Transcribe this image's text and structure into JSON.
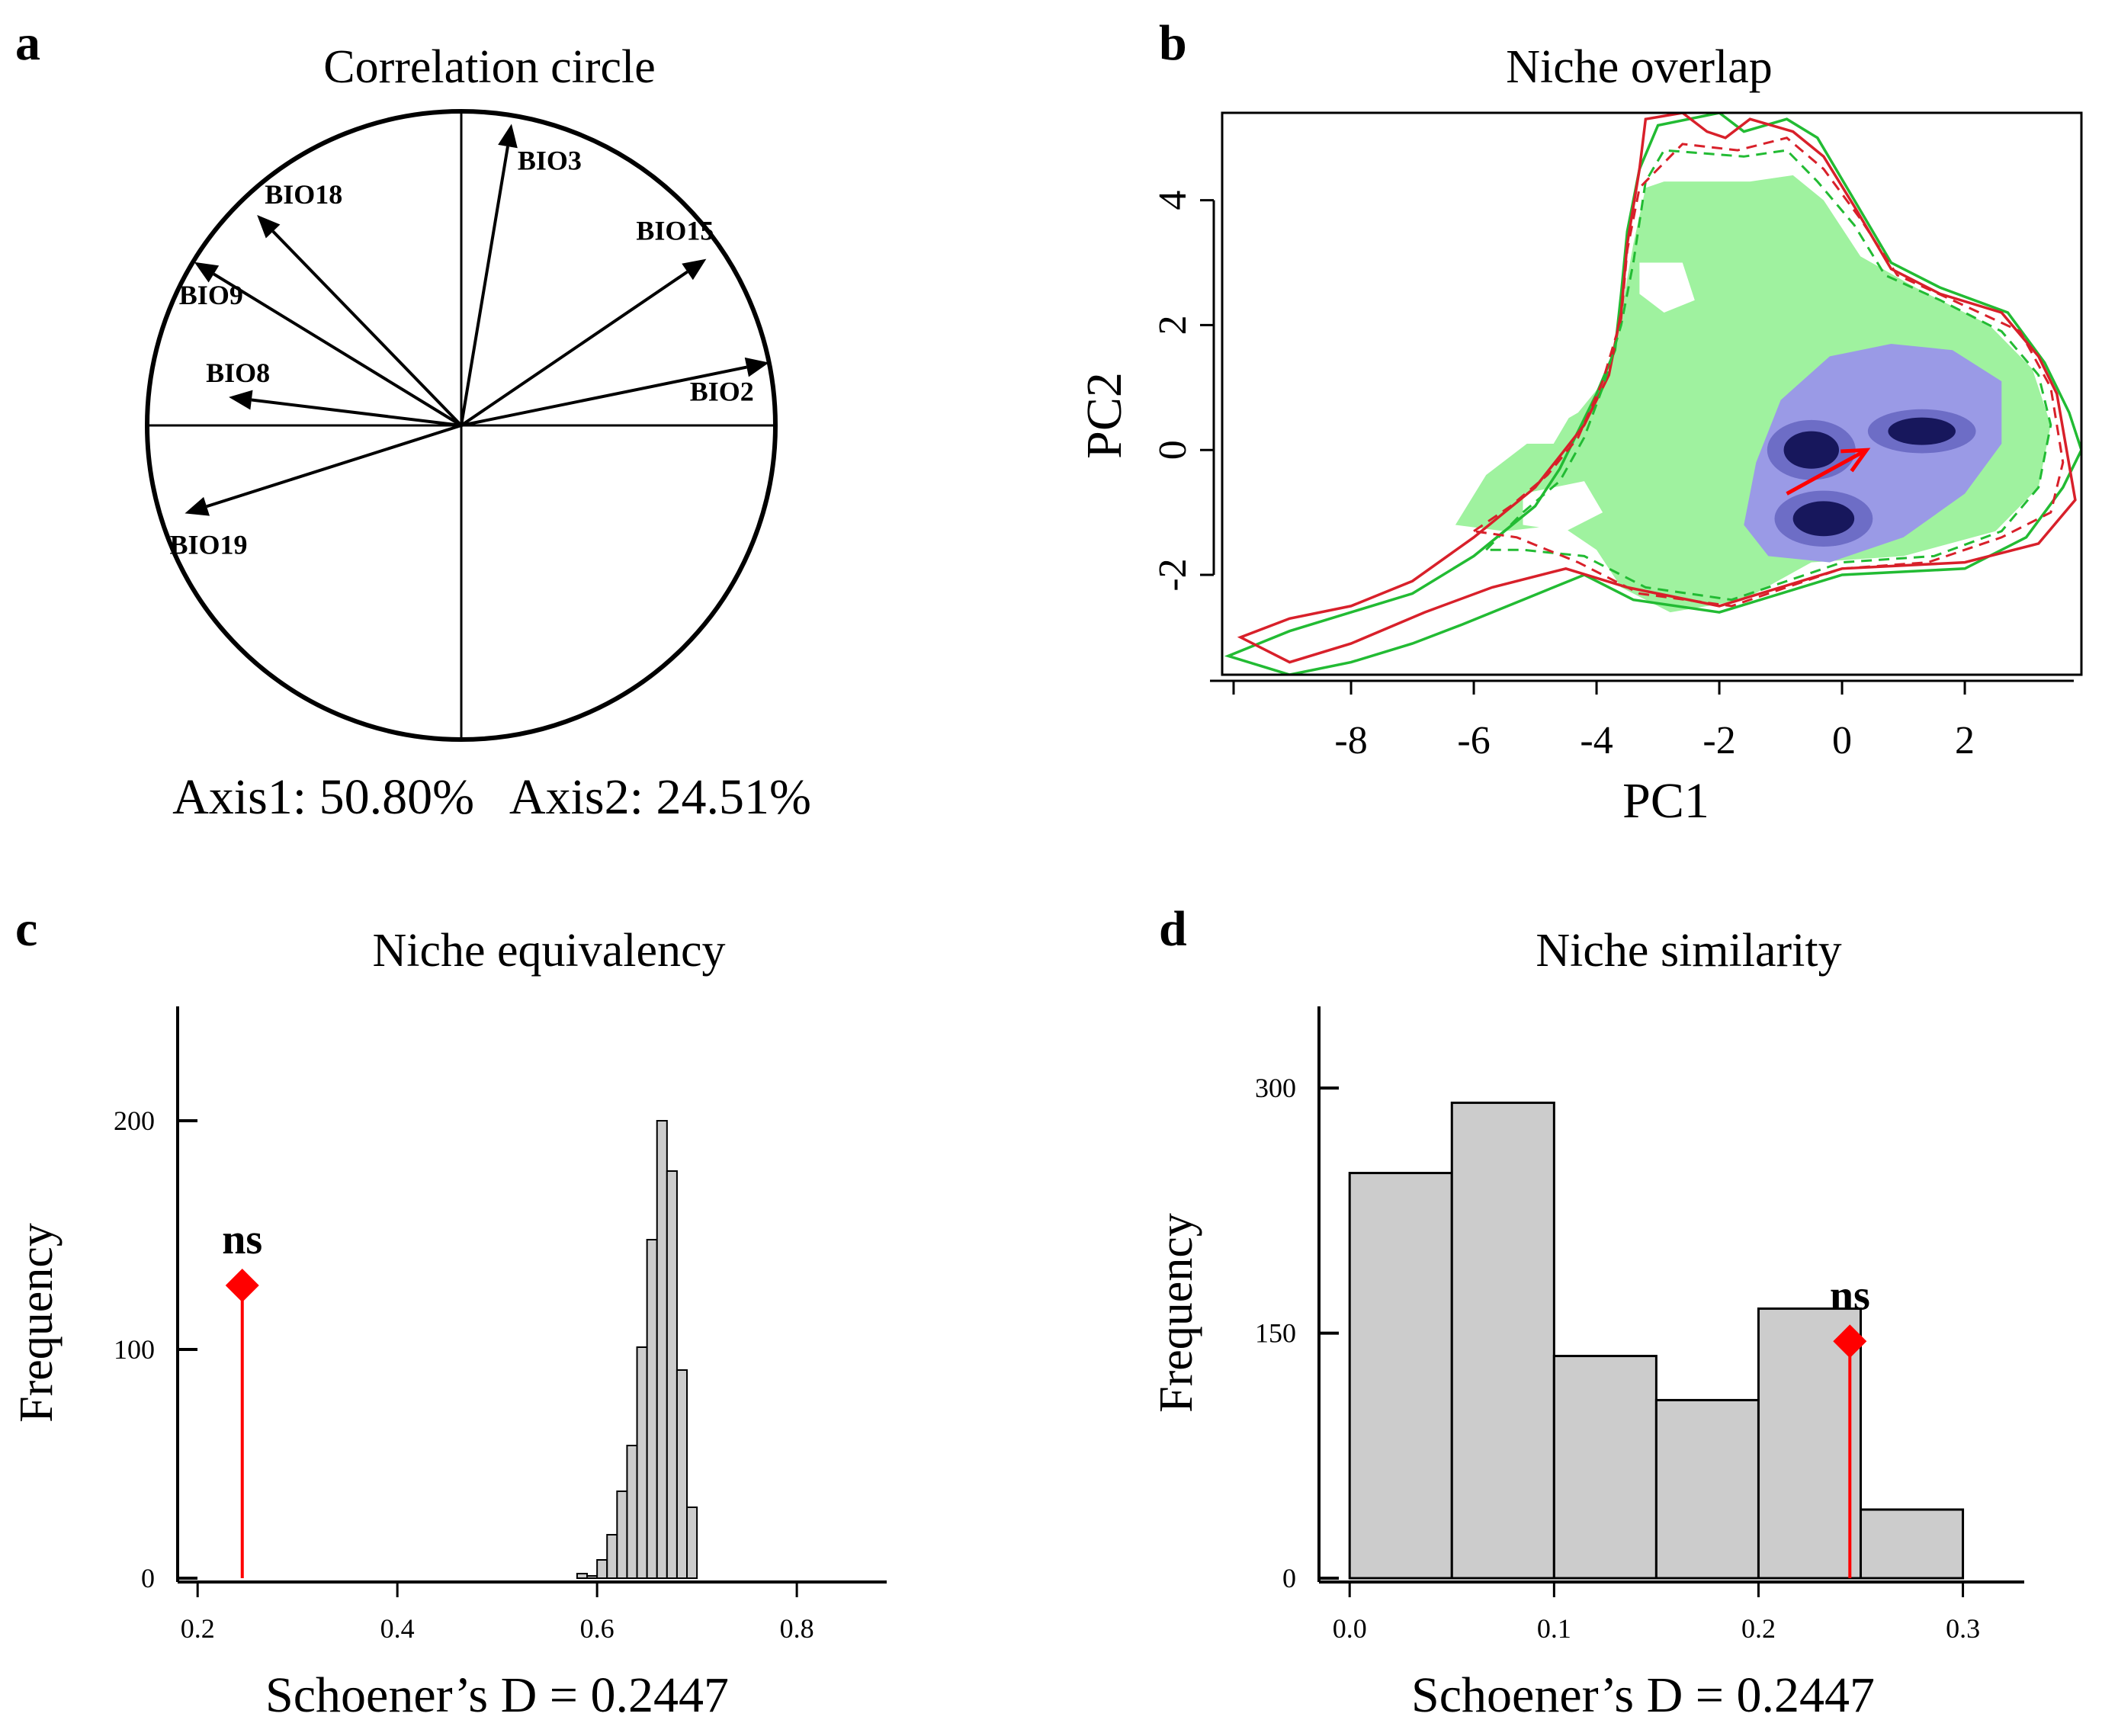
{
  "colors": {
    "text": "#000000",
    "green_line": "#22bb33",
    "green_fill": "#9ff29f",
    "red_line": "#d8202a",
    "blue_dark": "#0d0d50",
    "blue_light": "#9a9ae6",
    "bar_fill": "#cccccc",
    "marker_red": "#ff0000"
  },
  "chart_data": [
    {
      "panel": "a",
      "type": "correlation-circle",
      "title": "Correlation circle",
      "axis_label": "Axis1: 50.80%   Axis2: 24.51%",
      "xlim": [
        -1,
        1
      ],
      "ylim": [
        -1,
        1
      ],
      "vectors": [
        {
          "label": "BIO3",
          "x": 0.16,
          "y": 0.96
        },
        {
          "label": "BIO15",
          "x": 0.78,
          "y": 0.53
        },
        {
          "label": "BIO2",
          "x": 0.98,
          "y": 0.2
        },
        {
          "label": "BIO18",
          "x": -0.65,
          "y": 0.67
        },
        {
          "label": "BIO9",
          "x": -0.85,
          "y": 0.52
        },
        {
          "label": "BIO8",
          "x": -0.74,
          "y": 0.09
        },
        {
          "label": "BIO19",
          "x": -0.88,
          "y": -0.28
        }
      ]
    },
    {
      "panel": "b",
      "type": "niche-overlap",
      "title": "Niche overlap",
      "xlabel": "PC1",
      "ylabel": "PC2",
      "xlim": [
        -10.1,
        3.9
      ],
      "ylim": [
        -3.6,
        5.4
      ],
      "xticks": [
        -8,
        -6,
        -4,
        -2,
        0,
        2
      ],
      "xtick_labels": [
        "-8",
        "-6",
        "-4",
        "-2",
        "0",
        "2"
      ],
      "yticks": [
        -2,
        0,
        2,
        4
      ],
      "ytick_labels": [
        "-2",
        "0",
        "2",
        "4"
      ],
      "green_envelope": [
        [
          -10,
          -3.3
        ],
        [
          -9,
          -2.9
        ],
        [
          -8,
          -2.6
        ],
        [
          -7,
          -2.3
        ],
        [
          -6,
          -1.7
        ],
        [
          -5,
          -0.9
        ],
        [
          -4.6,
          -0.3
        ],
        [
          -4.3,
          0.3
        ],
        [
          -4,
          0.9
        ],
        [
          -3.7,
          1.6
        ],
        [
          -3.6,
          2.5
        ],
        [
          -3.5,
          3.5
        ],
        [
          -3.3,
          4.5
        ],
        [
          -3.0,
          5.2
        ],
        [
          -2.0,
          5.4
        ],
        [
          -1.6,
          5.1
        ],
        [
          -0.9,
          5.3
        ],
        [
          -0.4,
          5.0
        ],
        [
          0.2,
          4.0
        ],
        [
          0.8,
          3.0
        ],
        [
          1.6,
          2.6
        ],
        [
          2.7,
          2.2
        ],
        [
          3.3,
          1.4
        ],
        [
          3.7,
          0.6
        ],
        [
          3.9,
          0.0
        ],
        [
          3.6,
          -0.6
        ],
        [
          3.0,
          -1.4
        ],
        [
          2.0,
          -1.9
        ],
        [
          0,
          -2.0
        ],
        [
          -2,
          -2.6
        ],
        [
          -3.4,
          -2.4
        ],
        [
          -4.2,
          -2.0
        ],
        [
          -5.2,
          -2.4
        ],
        [
          -6.2,
          -2.8
        ],
        [
          -7,
          -3.1
        ],
        [
          -8,
          -3.4
        ],
        [
          -9,
          -3.6
        ],
        [
          -10,
          -3.3
        ]
      ],
      "red_envelope": [
        [
          -9.8,
          -3.0
        ],
        [
          -9,
          -2.7
        ],
        [
          -8,
          -2.5
        ],
        [
          -7,
          -2.1
        ],
        [
          -6,
          -1.4
        ],
        [
          -5,
          -0.6
        ],
        [
          -4.6,
          -0.1
        ],
        [
          -4.2,
          0.4
        ],
        [
          -3.8,
          1.2
        ],
        [
          -3.6,
          2.2
        ],
        [
          -3.5,
          3.3
        ],
        [
          -3.3,
          4.5
        ],
        [
          -3.2,
          5.3
        ],
        [
          -2.6,
          5.4
        ],
        [
          -2.2,
          5.1
        ],
        [
          -1.9,
          5.0
        ],
        [
          -1.5,
          5.3
        ],
        [
          -0.8,
          5.1
        ],
        [
          -0.3,
          4.7
        ],
        [
          0.2,
          3.9
        ],
        [
          0.8,
          2.9
        ],
        [
          1.6,
          2.5
        ],
        [
          2.6,
          2.2
        ],
        [
          3.2,
          1.5
        ],
        [
          3.5,
          0.9
        ],
        [
          3.8,
          -0.8
        ],
        [
          3.2,
          -1.5
        ],
        [
          2.0,
          -1.8
        ],
        [
          0,
          -1.9
        ],
        [
          -2,
          -2.5
        ],
        [
          -3.5,
          -2.2
        ],
        [
          -4.5,
          -1.9
        ],
        [
          -5.7,
          -2.2
        ],
        [
          -6.8,
          -2.6
        ],
        [
          -8,
          -3.1
        ],
        [
          -9,
          -3.4
        ],
        [
          -9.8,
          -3.0
        ]
      ],
      "green_inner": [
        [
          -5.8,
          -1.6
        ],
        [
          -5.2,
          -1.0
        ],
        [
          -4.6,
          -0.5
        ],
        [
          -4.2,
          0.2
        ],
        [
          -3.9,
          1.0
        ],
        [
          -3.6,
          2.0
        ],
        [
          -3.4,
          3.0
        ],
        [
          -3.2,
          4.3
        ],
        [
          -2.9,
          4.8
        ],
        [
          -1.6,
          4.7
        ],
        [
          -0.9,
          4.8
        ],
        [
          -0.4,
          4.3
        ],
        [
          0.2,
          3.6
        ],
        [
          0.7,
          2.8
        ],
        [
          1.6,
          2.4
        ],
        [
          2.6,
          1.9
        ],
        [
          3.2,
          1.2
        ],
        [
          3.4,
          0.4
        ],
        [
          3.2,
          -0.6
        ],
        [
          2.6,
          -1.3
        ],
        [
          1.5,
          -1.7
        ],
        [
          0,
          -1.8
        ],
        [
          -1.8,
          -2.4
        ],
        [
          -3.2,
          -2.2
        ],
        [
          -4.2,
          -1.7
        ],
        [
          -5.2,
          -1.6
        ],
        [
          -5.8,
          -1.6
        ]
      ],
      "red_inner": [
        [
          -6.0,
          -1.3
        ],
        [
          -5.4,
          -0.9
        ],
        [
          -4.8,
          -0.4
        ],
        [
          -4.3,
          0.2
        ],
        [
          -3.9,
          1.1
        ],
        [
          -3.6,
          2.1
        ],
        [
          -3.5,
          3.2
        ],
        [
          -3.3,
          4.2
        ],
        [
          -2.6,
          4.9
        ],
        [
          -1.7,
          4.8
        ],
        [
          -0.9,
          5.0
        ],
        [
          -0.3,
          4.5
        ],
        [
          0.3,
          3.7
        ],
        [
          0.9,
          2.8
        ],
        [
          1.8,
          2.4
        ],
        [
          2.9,
          1.9
        ],
        [
          3.4,
          1.0
        ],
        [
          3.6,
          -0.2
        ],
        [
          3.4,
          -1.0
        ],
        [
          2.6,
          -1.4
        ],
        [
          1.4,
          -1.8
        ],
        [
          0,
          -1.9
        ],
        [
          -1.8,
          -2.5
        ],
        [
          -3.3,
          -2.3
        ],
        [
          -4.3,
          -1.8
        ],
        [
          -5.3,
          -1.4
        ],
        [
          -6.0,
          -1.3
        ]
      ],
      "green_fill": [
        [
          -6.3,
          -1.2
        ],
        [
          -5.8,
          -0.4
        ],
        [
          -5.0,
          0.2
        ],
        [
          -4.3,
          0.6
        ],
        [
          -3.8,
          1.2
        ],
        [
          -3.6,
          2.2
        ],
        [
          -3.4,
          3.3
        ],
        [
          -3.2,
          4.2
        ],
        [
          -2.9,
          4.3
        ],
        [
          -1.5,
          4.3
        ],
        [
          -0.8,
          4.4
        ],
        [
          -0.3,
          4.0
        ],
        [
          0.3,
          3.1
        ],
        [
          1.2,
          2.6
        ],
        [
          2.4,
          2.0
        ],
        [
          3.1,
          1.3
        ],
        [
          3.4,
          0.4
        ],
        [
          3.2,
          -0.6
        ],
        [
          2.5,
          -1.3
        ],
        [
          1.0,
          -1.7
        ],
        [
          -0.5,
          -1.8
        ],
        [
          -1.6,
          -2.4
        ],
        [
          -2.8,
          -2.6
        ],
        [
          -3.6,
          -2.2
        ],
        [
          -4.0,
          -1.6
        ],
        [
          -4.6,
          -1.2
        ],
        [
          -5.5,
          -1.3
        ],
        [
          -6.3,
          -1.2
        ]
      ],
      "white_holes": [
        [
          [
            -3.3,
            3.0
          ],
          [
            -2.6,
            3.0
          ],
          [
            -2.4,
            2.4
          ],
          [
            -2.9,
            2.2
          ],
          [
            -3.3,
            2.5
          ]
        ],
        [
          [
            -5.8,
            0.6
          ],
          [
            -4.8,
            0.9
          ],
          [
            -4.4,
            0.6
          ],
          [
            -4.7,
            0.1
          ],
          [
            -5.6,
            0.1
          ]
        ],
        [
          [
            -5.2,
            -0.7
          ],
          [
            -4.2,
            -0.5
          ],
          [
            -3.9,
            -1.0
          ],
          [
            -4.5,
            -1.3
          ],
          [
            -5.2,
            -1.2
          ]
        ]
      ],
      "density_light": [
        [
          -1.6,
          -1.2
        ],
        [
          -1.4,
          -0.2
        ],
        [
          -1.0,
          0.8
        ],
        [
          -0.2,
          1.5
        ],
        [
          0.8,
          1.7
        ],
        [
          1.8,
          1.6
        ],
        [
          2.6,
          1.1
        ],
        [
          2.6,
          0.1
        ],
        [
          2.0,
          -0.7
        ],
        [
          1.0,
          -1.4
        ],
        [
          -0.2,
          -1.8
        ],
        [
          -1.2,
          -1.7
        ]
      ],
      "density_dark": [
        {
          "cx": -0.5,
          "cy": 0.0,
          "rx": 0.45,
          "ry": 0.3
        },
        {
          "cx": -0.3,
          "cy": -1.1,
          "rx": 0.5,
          "ry": 0.28
        },
        {
          "cx": 1.3,
          "cy": 0.3,
          "rx": 0.55,
          "ry": 0.22
        }
      ],
      "shift_arrow": {
        "x0": -0.9,
        "y0": -0.7,
        "x1": 0.4,
        "y1": 0.0
      }
    },
    {
      "panel": "c",
      "type": "histogram",
      "title": "Niche equivalency",
      "xlabel": "Schoener’s D = 0.2447",
      "ylabel": "Frequency",
      "xlim": [
        0.18,
        0.89
      ],
      "ylim": [
        0,
        250
      ],
      "xticks": [
        0.2,
        0.4,
        0.6,
        0.8
      ],
      "xtick_labels": [
        "0.2",
        "0.4",
        "0.6",
        "0.8"
      ],
      "yticks": [
        0,
        100,
        200
      ],
      "ytick_labels": [
        "0",
        "100",
        "200"
      ],
      "bins": [
        0.58,
        0.59,
        0.6,
        0.61,
        0.62,
        0.63,
        0.64,
        0.65,
        0.66,
        0.67,
        0.68,
        0.69,
        0.7
      ],
      "counts": [
        2,
        1,
        8,
        19,
        38,
        58,
        101,
        148,
        200,
        178,
        91,
        31
      ],
      "observed": 0.2447,
      "observed_marker_y": 128,
      "significance": "ns"
    },
    {
      "panel": "d",
      "type": "histogram",
      "title": "Niche similarity",
      "xlabel": "Schoener’s D = 0.2447",
      "ylabel": "Frequency",
      "xlim": [
        -0.015,
        0.33
      ],
      "ylim": [
        0,
        350
      ],
      "xticks": [
        0.0,
        0.1,
        0.2,
        0.3
      ],
      "xtick_labels": [
        "0.0",
        "0.1",
        "0.2",
        "0.3"
      ],
      "yticks": [
        0,
        150,
        300
      ],
      "ytick_labels": [
        "0",
        "150",
        "300"
      ],
      "bins": [
        0.0,
        0.05,
        0.1,
        0.15,
        0.2,
        0.25,
        0.3
      ],
      "counts": [
        248,
        291,
        136,
        109,
        165,
        42
      ],
      "observed": 0.2447,
      "observed_marker_y": 145,
      "significance": "ns"
    }
  ]
}
